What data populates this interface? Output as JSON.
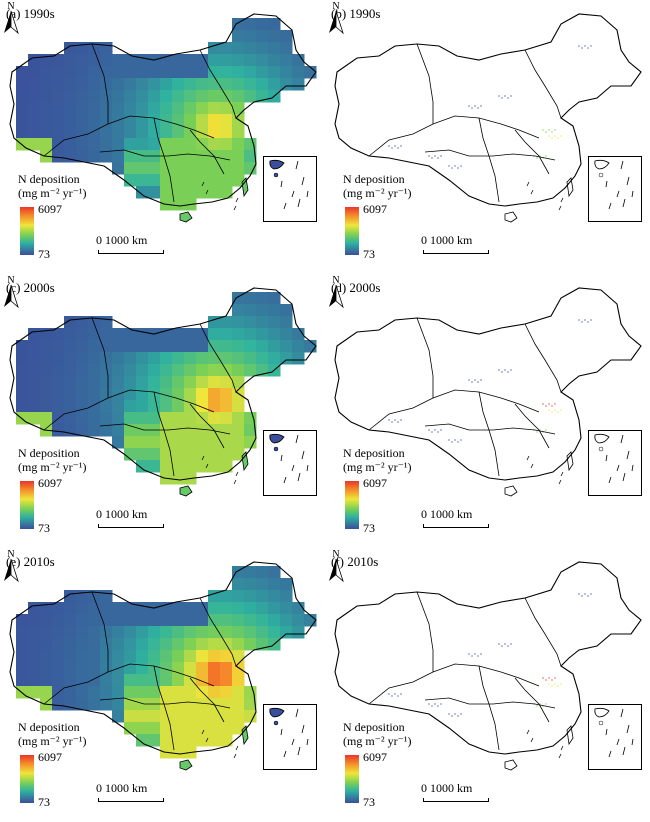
{
  "panels": [
    {
      "label": "(a) 1990s",
      "type": "deposition",
      "hotspot": 0
    },
    {
      "label": "(b) 1990s",
      "type": "outline",
      "hotspot": 0
    },
    {
      "label": "(c) 2000s",
      "type": "deposition",
      "hotspot": 1
    },
    {
      "label": "(d) 2000s",
      "type": "outline",
      "hotspot": 1
    },
    {
      "label": "(e) 2010s",
      "type": "deposition",
      "hotspot": 2
    },
    {
      "label": "(f) 2010s",
      "type": "outline",
      "hotspot": 2
    }
  ],
  "legend": {
    "title_line1": "N deposition",
    "title_line2": "(mg m⁻² yr⁻¹)",
    "max": "6097",
    "min": "73"
  },
  "scale_label": "0     1000 km",
  "north_label": "N",
  "colors": {
    "low": "#3b4e9c",
    "teal": "#2fb2a0",
    "green": "#7ad056",
    "yellow": "#f0e53a",
    "orange": "#f58b2a",
    "high": "#e8352a"
  }
}
